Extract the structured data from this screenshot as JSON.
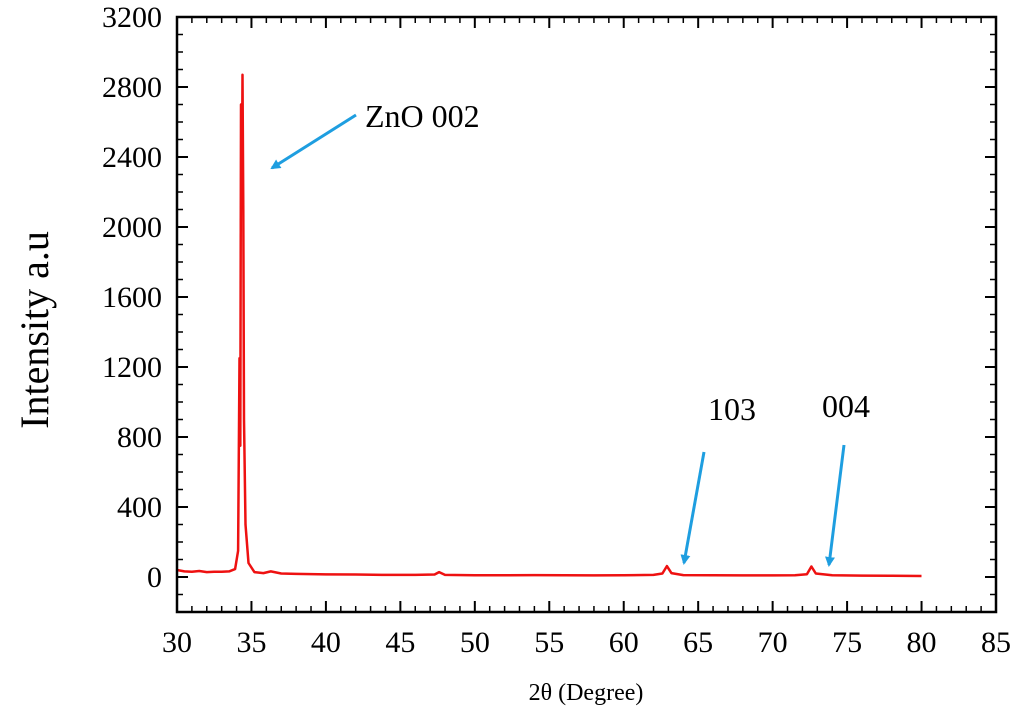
{
  "chart_data": {
    "type": "line",
    "xlabel": "2θ (Degree)",
    "ylabel": "Intensity a.u",
    "xlim": [
      30,
      85
    ],
    "ylim": [
      -200,
      3200
    ],
    "x_ticks": [
      30,
      35,
      40,
      45,
      50,
      55,
      60,
      65,
      70,
      75,
      80,
      85
    ],
    "y_ticks": [
      0,
      400,
      800,
      1200,
      1600,
      2000,
      2400,
      2800,
      3200
    ],
    "grid": false,
    "legend": "none",
    "series": [
      {
        "color": "#ee1111",
        "points": [
          [
            30,
            40
          ],
          [
            30.5,
            32
          ],
          [
            31,
            30
          ],
          [
            31.5,
            34
          ],
          [
            32,
            28
          ],
          [
            32.5,
            30
          ],
          [
            33,
            30
          ],
          [
            33.5,
            32
          ],
          [
            33.9,
            45
          ],
          [
            34.1,
            150
          ],
          [
            34.2,
            1250
          ],
          [
            34.25,
            750
          ],
          [
            34.3,
            2700
          ],
          [
            34.35,
            2130
          ],
          [
            34.4,
            2870
          ],
          [
            34.45,
            2100
          ],
          [
            34.5,
            900
          ],
          [
            34.6,
            300
          ],
          [
            34.8,
            80
          ],
          [
            35.2,
            28
          ],
          [
            35.8,
            22
          ],
          [
            36.3,
            32
          ],
          [
            37,
            20
          ],
          [
            38,
            18
          ],
          [
            40,
            15
          ],
          [
            42,
            14
          ],
          [
            44,
            12
          ],
          [
            46,
            12
          ],
          [
            47.3,
            14
          ],
          [
            47.6,
            28
          ],
          [
            48,
            12
          ],
          [
            50,
            10
          ],
          [
            52,
            10
          ],
          [
            54,
            11
          ],
          [
            56,
            10
          ],
          [
            58,
            9
          ],
          [
            60,
            10
          ],
          [
            62,
            12
          ],
          [
            62.6,
            20
          ],
          [
            62.9,
            62
          ],
          [
            63.2,
            22
          ],
          [
            64,
            11
          ],
          [
            66,
            10
          ],
          [
            68,
            9
          ],
          [
            70,
            9
          ],
          [
            71.5,
            10
          ],
          [
            72.3,
            16
          ],
          [
            72.6,
            60
          ],
          [
            72.9,
            20
          ],
          [
            74,
            10
          ],
          [
            76,
            8
          ],
          [
            78,
            7
          ],
          [
            80,
            6
          ]
        ]
      }
    ],
    "annotations": [
      {
        "text": "ZnO 002",
        "color": "#1e9ee0"
      },
      {
        "text": "103",
        "color": "#1e9ee0"
      },
      {
        "text": "004",
        "color": "#1e9ee0"
      }
    ]
  }
}
